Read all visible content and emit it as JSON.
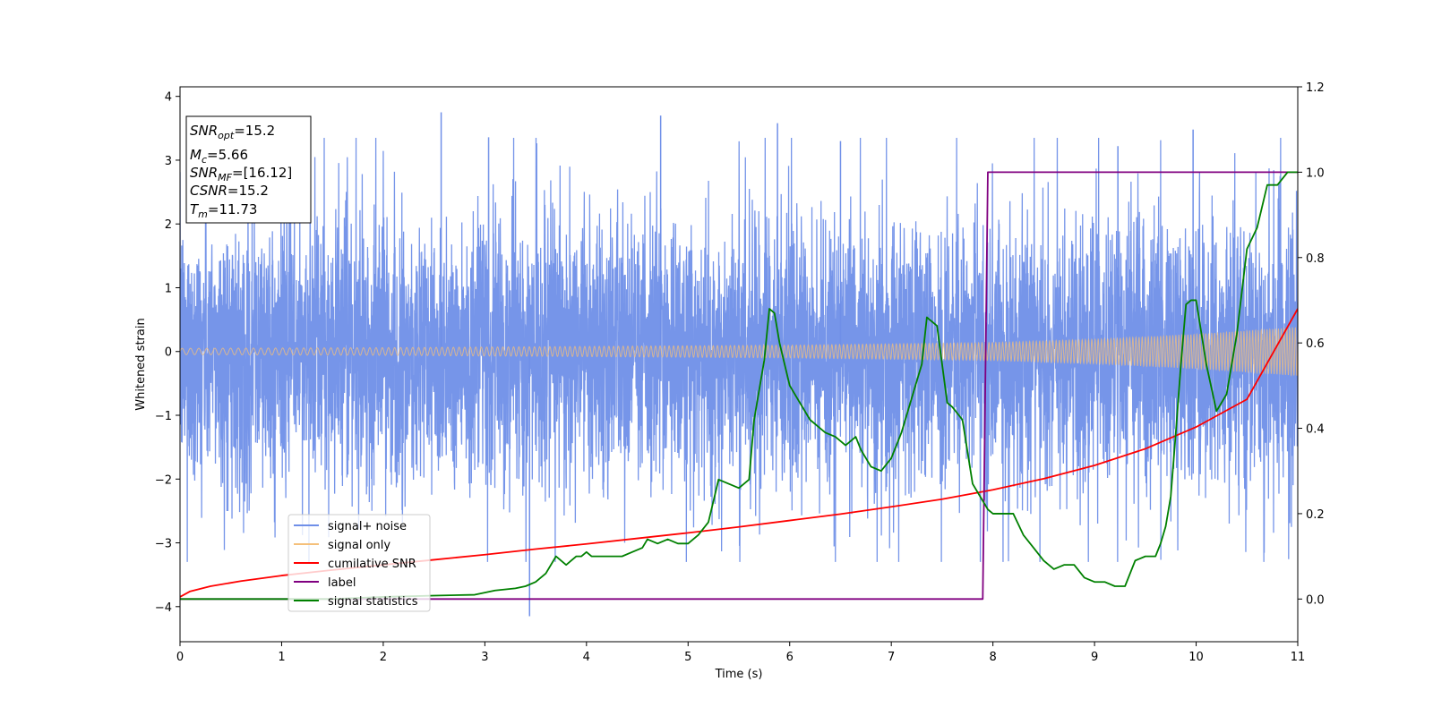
{
  "chart_data": {
    "type": "line",
    "xlabel": "Time (s)",
    "ylabel": "Whitened strain",
    "xlim": [
      0,
      11
    ],
    "ylim_left": [
      -4.55,
      4.15
    ],
    "ylim_right": [
      -0.1,
      1.2
    ],
    "x_ticks": [
      0,
      1,
      2,
      3,
      4,
      5,
      6,
      7,
      8,
      9,
      10,
      11
    ],
    "y_ticks_left": [
      -4,
      -3,
      -2,
      -1,
      0,
      1,
      2,
      3,
      4
    ],
    "y_ticks_right": [
      0.0,
      0.2,
      0.4,
      0.6,
      0.8,
      1.0,
      1.2
    ],
    "grid": false,
    "legend_position": "lower-left",
    "info_box": {
      "snr_opt": {
        "base": "SNR",
        "sub": "opt",
        "value": "=15.2"
      },
      "mc": {
        "base": "M",
        "sub": "c",
        "value": "=5.66"
      },
      "snr_mf": {
        "base": "SNR",
        "sub": "MF",
        "value": "=[16.12]"
      },
      "csnr": {
        "base": "CSNR",
        "value": "=15.2"
      },
      "tm": {
        "base": "T",
        "sub": "m",
        "value": "=11.73"
      }
    },
    "series": [
      {
        "name": "signal+ noise",
        "axis": "left",
        "color": "#6f8fe8",
        "kind": "noise",
        "core_amplitude": 1.3,
        "max_peak": 3.75,
        "min_peak": -4.15
      },
      {
        "name": "signal only",
        "axis": "left",
        "color": "#f5c07a",
        "kind": "chirp",
        "envelope": {
          "x": [
            0,
            2,
            4,
            6,
            8,
            9,
            10,
            11
          ],
          "y": [
            0.05,
            0.06,
            0.08,
            0.1,
            0.14,
            0.19,
            0.27,
            0.38
          ]
        }
      },
      {
        "name": "cumilative SNR",
        "axis": "right",
        "color": "#ff0000",
        "x": [
          0,
          0.1,
          0.3,
          0.6,
          1,
          1.5,
          2,
          2.5,
          3,
          3.5,
          4,
          4.5,
          5,
          5.5,
          6,
          6.5,
          7,
          7.5,
          8,
          8.5,
          9,
          9.5,
          10,
          10.5,
          11
        ],
        "y": [
          0.005,
          0.018,
          0.03,
          0.042,
          0.055,
          0.068,
          0.08,
          0.092,
          0.104,
          0.117,
          0.129,
          0.142,
          0.155,
          0.169,
          0.184,
          0.199,
          0.216,
          0.234,
          0.256,
          0.282,
          0.313,
          0.352,
          0.403,
          0.468,
          0.68
        ]
      },
      {
        "name": "label",
        "axis": "right",
        "color": "#800080",
        "x": [
          0,
          7.9,
          7.95,
          11
        ],
        "y": [
          0,
          0,
          1,
          1
        ]
      },
      {
        "name": "signal statistics",
        "axis": "right",
        "color": "#008000",
        "x": [
          0,
          0.5,
          1,
          1.5,
          2,
          2.5,
          2.9,
          3.1,
          3.3,
          3.4,
          3.5,
          3.6,
          3.7,
          3.8,
          3.9,
          3.95,
          4.0,
          4.05,
          4.15,
          4.25,
          4.35,
          4.45,
          4.55,
          4.6,
          4.7,
          4.8,
          4.9,
          5.0,
          5.1,
          5.2,
          5.3,
          5.4,
          5.5,
          5.6,
          5.65,
          5.75,
          5.8,
          5.85,
          5.9,
          5.95,
          6.0,
          6.1,
          6.2,
          6.3,
          6.35,
          6.45,
          6.55,
          6.65,
          6.7,
          6.8,
          6.9,
          7.0,
          7.1,
          7.2,
          7.3,
          7.35,
          7.45,
          7.55,
          7.6,
          7.7,
          7.8,
          7.9,
          7.95,
          8.0,
          8.1,
          8.2,
          8.3,
          8.4,
          8.5,
          8.6,
          8.7,
          8.8,
          8.9,
          9.0,
          9.1,
          9.2,
          9.3,
          9.4,
          9.5,
          9.55,
          9.6,
          9.65,
          9.7,
          9.75,
          9.8,
          9.85,
          9.9,
          9.95,
          10.0,
          10.1,
          10.2,
          10.3,
          10.4,
          10.5,
          10.6,
          10.7,
          10.8,
          10.9,
          11.0
        ],
        "y": [
          0.0,
          0.0,
          0.0,
          0.0,
          0.005,
          0.008,
          0.01,
          0.02,
          0.025,
          0.03,
          0.04,
          0.06,
          0.1,
          0.08,
          0.1,
          0.1,
          0.11,
          0.1,
          0.1,
          0.1,
          0.1,
          0.11,
          0.12,
          0.14,
          0.13,
          0.14,
          0.13,
          0.13,
          0.15,
          0.18,
          0.28,
          0.27,
          0.26,
          0.28,
          0.42,
          0.56,
          0.68,
          0.67,
          0.6,
          0.55,
          0.5,
          0.46,
          0.42,
          0.4,
          0.39,
          0.38,
          0.36,
          0.38,
          0.35,
          0.31,
          0.3,
          0.33,
          0.39,
          0.47,
          0.55,
          0.66,
          0.64,
          0.46,
          0.45,
          0.42,
          0.27,
          0.23,
          0.21,
          0.2,
          0.2,
          0.2,
          0.15,
          0.12,
          0.09,
          0.07,
          0.08,
          0.08,
          0.05,
          0.04,
          0.04,
          0.03,
          0.03,
          0.09,
          0.1,
          0.1,
          0.1,
          0.13,
          0.17,
          0.24,
          0.39,
          0.55,
          0.69,
          0.7,
          0.7,
          0.55,
          0.44,
          0.48,
          0.62,
          0.82,
          0.87,
          0.97,
          0.97,
          1.0,
          1.0
        ]
      }
    ]
  }
}
